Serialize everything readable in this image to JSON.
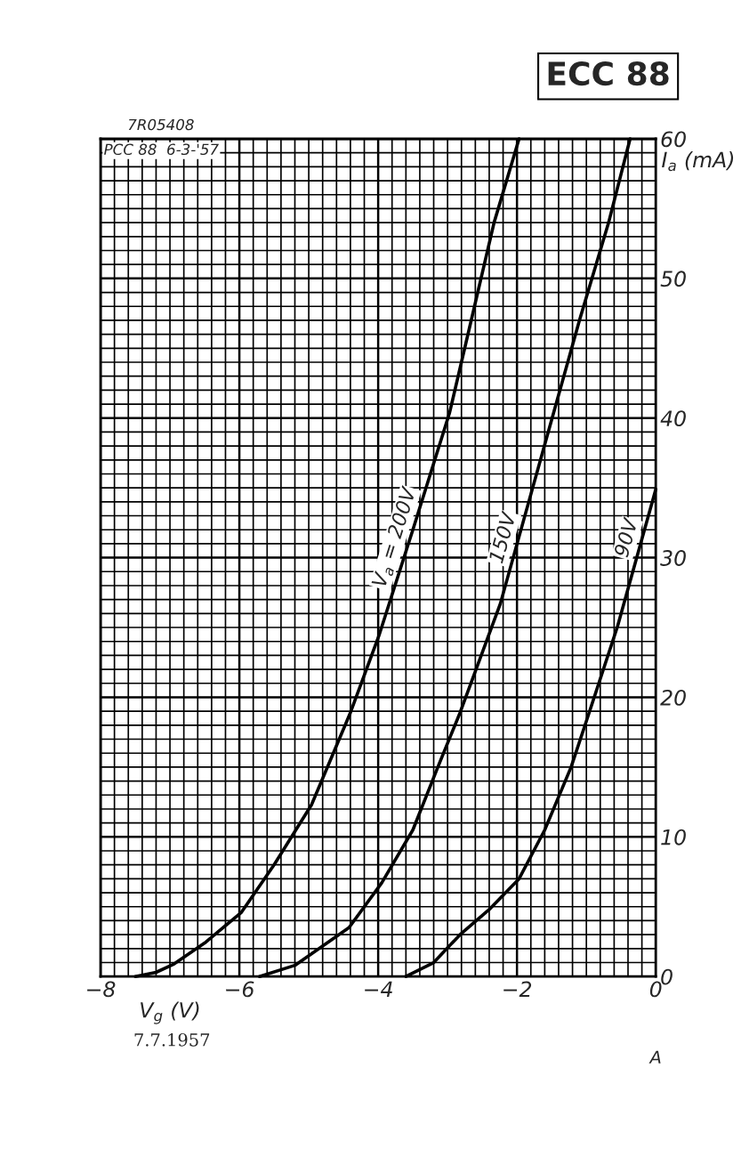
{
  "chart_data": {
    "type": "line",
    "title": "ECC 88",
    "xlabel": "V$_{g}$ (V)",
    "ylabel": "I$_{a}$ (mA)",
    "xlim": [
      -8,
      0
    ],
    "ylim": [
      0,
      60
    ],
    "xticks": [
      {
        "value": -8,
        "label": "−8"
      },
      {
        "value": -6,
        "label": "−6"
      },
      {
        "value": -4,
        "label": "−4"
      },
      {
        "value": -2,
        "label": "−2"
      },
      0
    ],
    "yticks": [
      0,
      10,
      20,
      30,
      40,
      50,
      60
    ],
    "grid": true,
    "legend": false,
    "marker": "none",
    "line_style": "solid",
    "series": [
      {
        "name": "V$_{a}$ = 200V",
        "color": "#000000",
        "x": [
          -7.5,
          -7.2,
          -6.94,
          -6.5,
          -5.97,
          -5.5,
          -4.96,
          -4.4,
          -3.99,
          -3.5,
          -2.97,
          -2.33,
          -1.97
        ],
        "values": [
          0,
          0.3,
          0.9,
          2.4,
          4.6,
          8,
          12.3,
          18.9,
          24.4,
          32,
          40.4,
          54,
          60
        ]
      },
      {
        "name": "150V",
        "color": "#000000",
        "x": [
          -5.71,
          -5.2,
          -4.42,
          -3.95,
          -3.5,
          -3.14,
          -2.82,
          -2.24,
          -1.6,
          -1.1,
          -0.68,
          -0.37
        ],
        "values": [
          0,
          0.8,
          3.5,
          6.7,
          10.5,
          15,
          18.9,
          26.7,
          38.1,
          47,
          54,
          60
        ]
      },
      {
        "name": "90V",
        "color": "#000000",
        "x": [
          -3.6,
          -3.2,
          -2.82,
          -2.4,
          -1.97,
          -1.6,
          -1.22,
          -0.96,
          -0.55,
          0
        ],
        "values": [
          0,
          1.0,
          3,
          4.8,
          7,
          10.5,
          15,
          18.9,
          25.1,
          34.9
        ]
      }
    ],
    "annotations": [
      "7R05408",
      "PCC 88  6-3-'57",
      "7.7.1957",
      "A"
    ]
  }
}
